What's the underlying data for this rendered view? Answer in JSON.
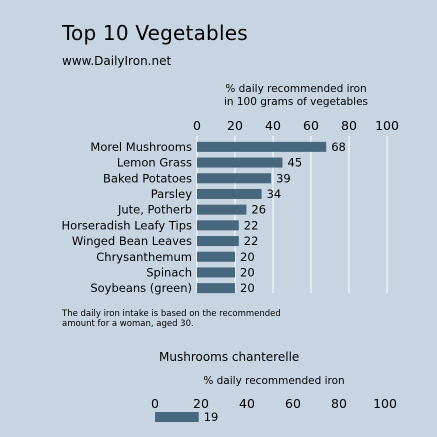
{
  "header": {
    "title": "Top 10 Vegetables",
    "subtitle": "www.DailyIron.net"
  },
  "footnote": "The daily iron intake is based on the recommended amount for a woman, aged 30.",
  "colors": {
    "background": "#c7d4e2",
    "bar": "#46677d",
    "gridline": "#ffffff"
  },
  "chart_data": [
    {
      "type": "bar",
      "orientation": "horizontal",
      "xlabel_lines": [
        "% daily recommended iron",
        "in 100 grams of vegetables"
      ],
      "xlim": [
        0,
        100
      ],
      "ticks": [
        0,
        20,
        40,
        60,
        80,
        100
      ],
      "grid": true,
      "categories": [
        "Morel Mushrooms",
        "Lemon Grass",
        "Baked Potatoes",
        "Parsley",
        "Jute, Potherb",
        "Horseradish Leafy Tips",
        "Winged Bean Leaves",
        "Chrysanthemum",
        "Spinach",
        "Soybeans (green)"
      ],
      "values": [
        68,
        45,
        39,
        34,
        26,
        22,
        22,
        20,
        20,
        20
      ]
    },
    {
      "type": "bar",
      "orientation": "horizontal",
      "title": "Mushrooms chanterelle",
      "xlabel_lines": [
        "% daily recommended iron"
      ],
      "xlim": [
        0,
        100
      ],
      "ticks": [
        0,
        20,
        40,
        60,
        80,
        100
      ],
      "grid": false,
      "categories": [
        ""
      ],
      "values": [
        19
      ]
    }
  ]
}
